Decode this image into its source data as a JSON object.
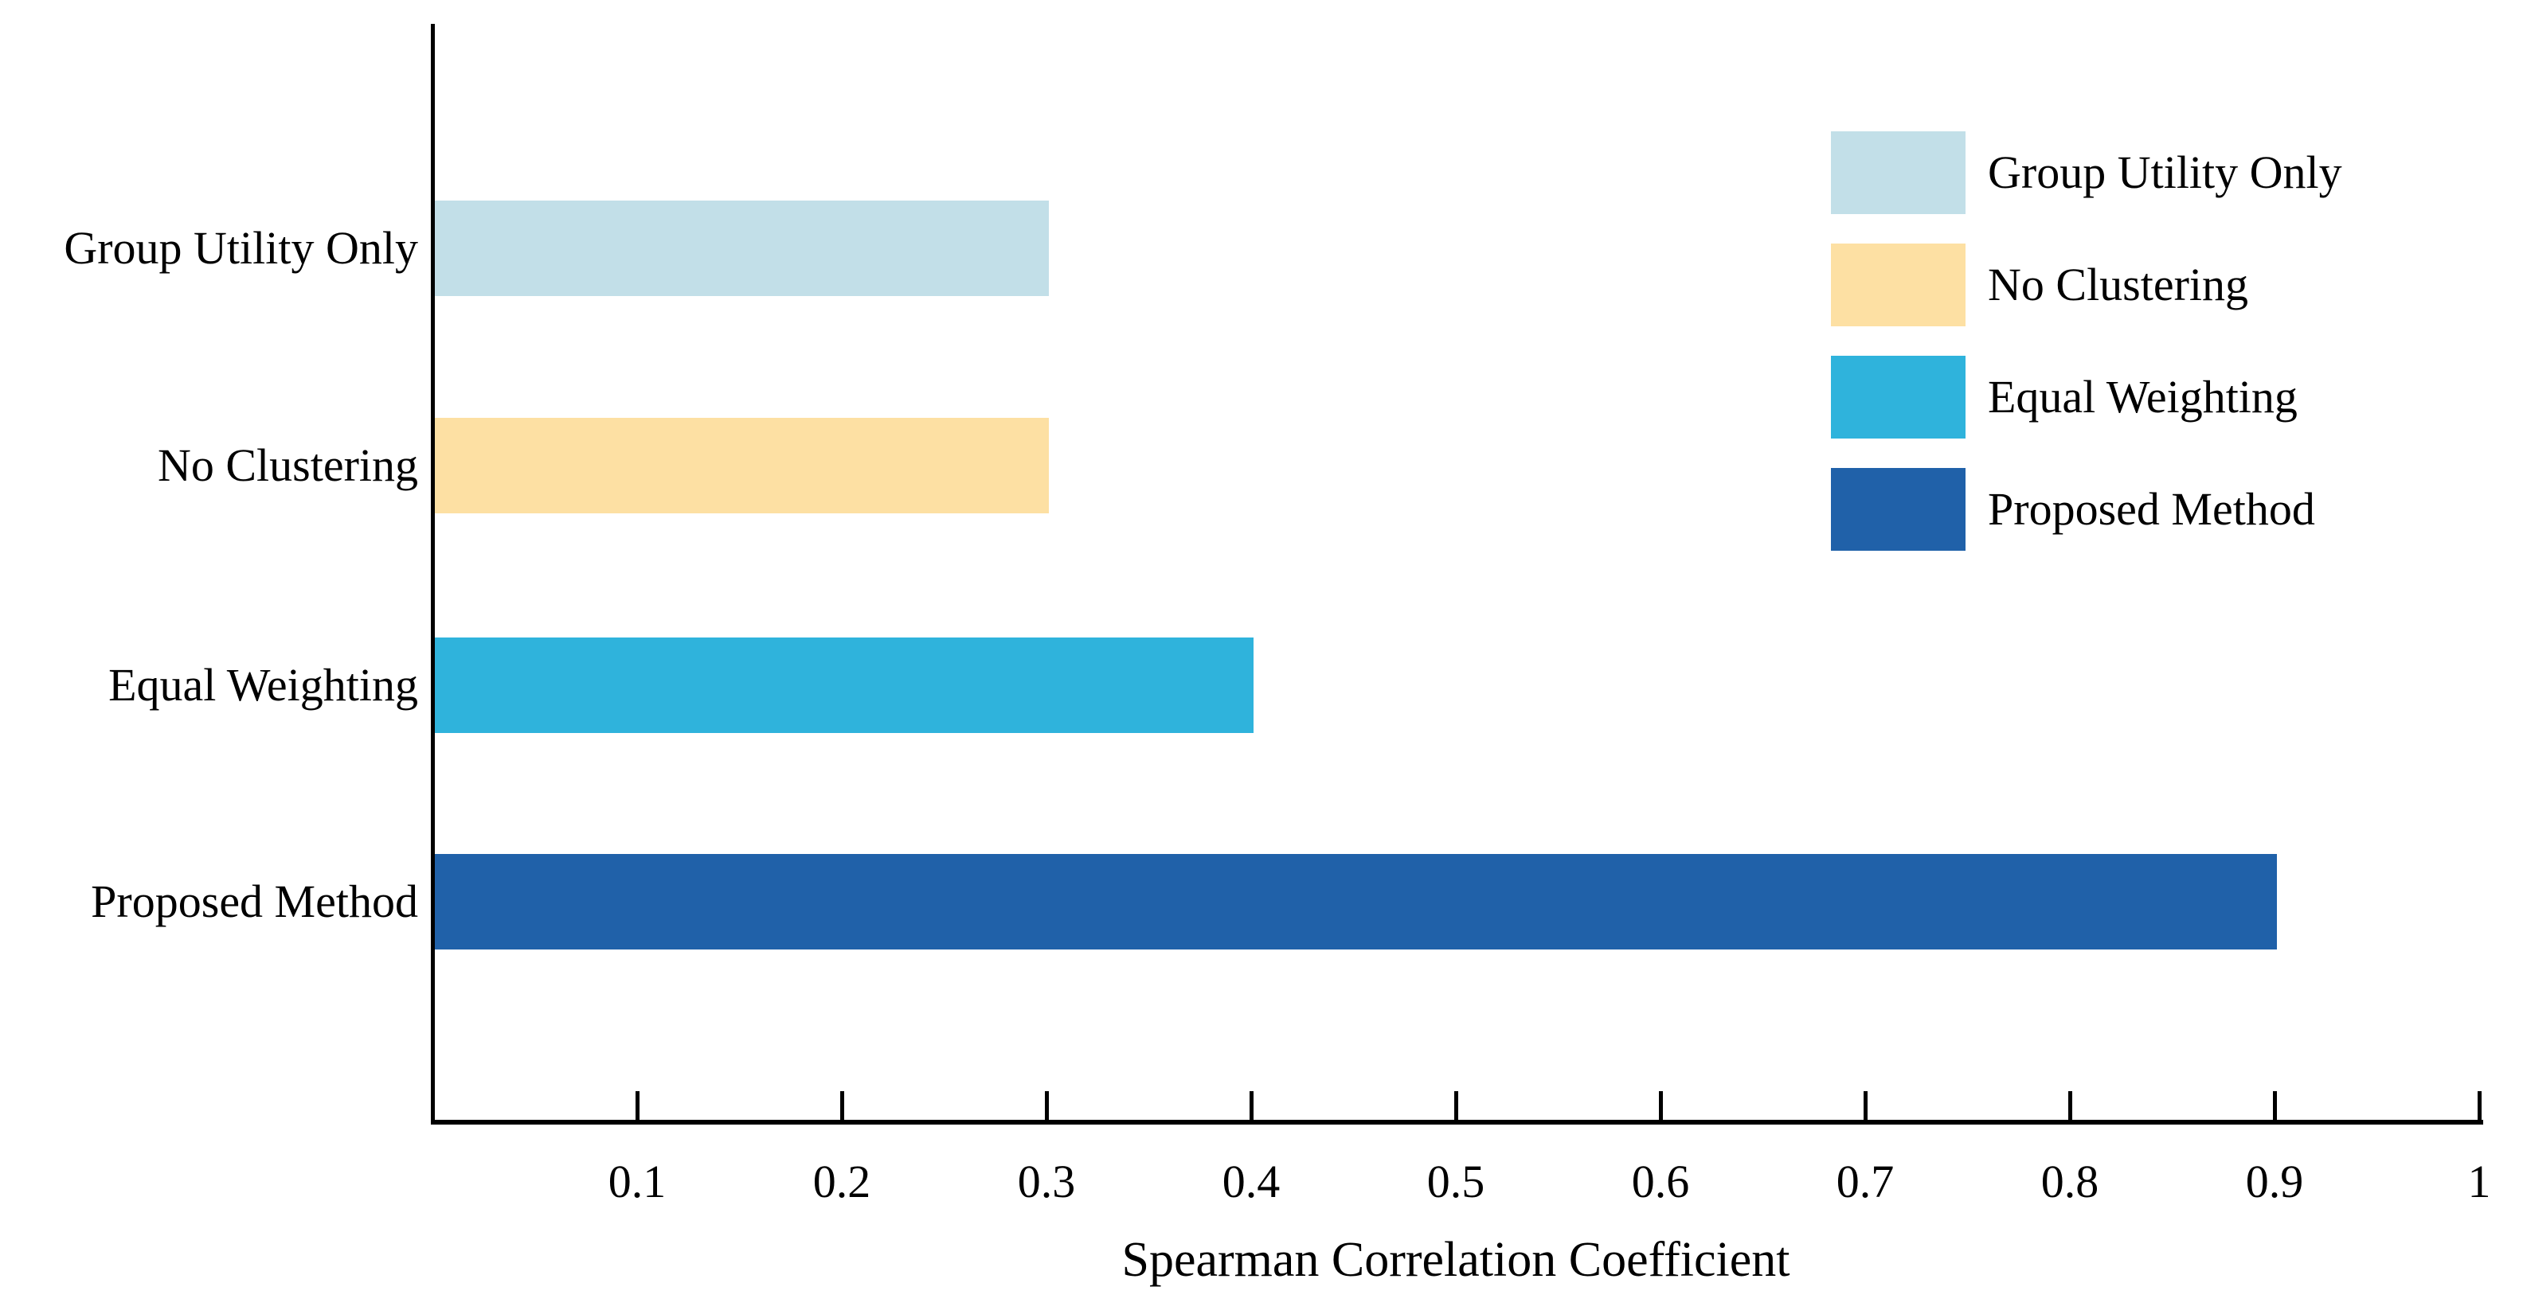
{
  "chart_data": {
    "type": "bar",
    "orientation": "horizontal",
    "title": "",
    "xlabel": "Spearman Correlation Coefficient",
    "ylabel": "",
    "categories": [
      "Group Utility Only",
      "No Clustering",
      "Equal Weighting",
      "Proposed Method"
    ],
    "values": [
      0.3,
      0.3,
      0.4,
      0.9
    ],
    "colors": [
      "#c2dfe8",
      "#fde0a3",
      "#2fb3dc",
      "#2061a9"
    ],
    "xlim": [
      0,
      1
    ],
    "xticks": [
      0.1,
      0.2,
      0.3,
      0.4,
      0.5,
      0.6,
      0.7,
      0.8,
      0.9,
      1
    ],
    "xtick_labels": [
      "0.1",
      "0.2",
      "0.3",
      "0.4",
      "0.5",
      "0.6",
      "0.7",
      "0.8",
      "0.9",
      "1"
    ],
    "grid": false,
    "axis_color": "#000000",
    "background_color": "#ffffff",
    "legend": {
      "position": "upper-right",
      "frame": false,
      "entries": [
        {
          "label": "Group Utility Only",
          "color": "#c2dfe8"
        },
        {
          "label": "No Clustering",
          "color": "#fde0a3"
        },
        {
          "label": "Equal Weighting",
          "color": "#2fb3dc"
        },
        {
          "label": "Proposed Method",
          "color": "#2061a9"
        }
      ]
    }
  }
}
